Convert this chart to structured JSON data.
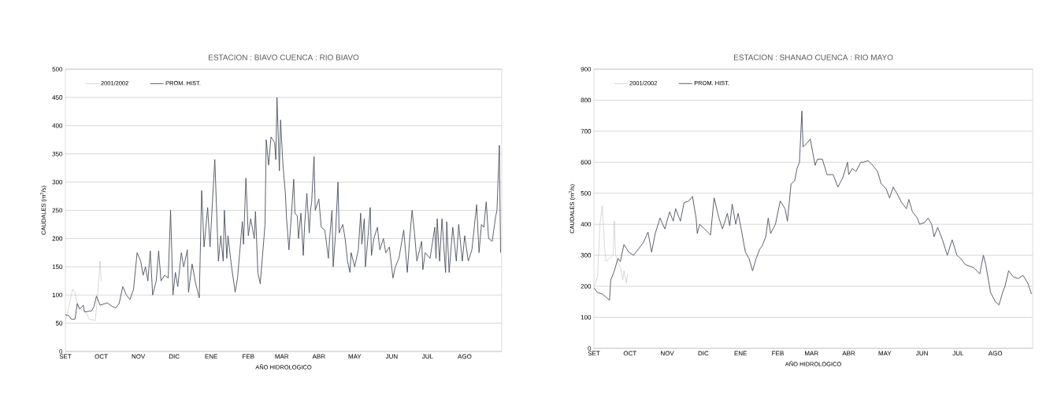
{
  "chart_data": [
    {
      "type": "line",
      "title": "ESTACION : BIAVO    CUENCA : RIO BIAVO",
      "xlabel": "AÑO HIDROLOGICO",
      "ylabel": "CAUDALES (m$^{3}$/s)",
      "xlim": [
        "2001-09-01",
        "2002-08-31"
      ],
      "xticks": [
        {
          "value": "2001-09-01",
          "label": "SET"
        },
        {
          "value": "2001-10-01",
          "label": "OCT"
        },
        {
          "value": "2001-11-01",
          "label": "NOV"
        },
        {
          "value": "2001-12-01",
          "label": "DIC"
        },
        {
          "value": "2002-01-01",
          "label": "ENE"
        },
        {
          "value": "2002-02-01",
          "label": "FEB"
        },
        {
          "value": "2002-03-01",
          "label": "MAR"
        },
        {
          "value": "2002-04-01",
          "label": "ABR"
        },
        {
          "value": "2002-05-01",
          "label": "MAY"
        },
        {
          "value": "2002-06-01",
          "label": "JUN"
        },
        {
          "value": "2002-07-01",
          "label": "JUL"
        },
        {
          "value": "2002-08-01",
          "label": "AGO"
        }
      ],
      "ylim": [
        0,
        500
      ],
      "yticks": [
        0,
        50,
        100,
        150,
        200,
        250,
        300,
        350,
        400,
        450,
        500
      ],
      "grid": "y",
      "legend": "top left",
      "marker": "none",
      "line_style": "solid",
      "series": [
        {
          "name": "2001/2002",
          "color": "#bdbdbd",
          "x": [
            "2001-09-01",
            "2001-09-04",
            "2001-09-07",
            "2001-09-09",
            "2001-09-11",
            "2001-09-14",
            "2001-09-18",
            "2001-09-21",
            "2001-09-26",
            "2001-09-28",
            "2001-09-30",
            "2001-10-01"
          ],
          "values": [
            55,
            80,
            110,
            105,
            80,
            75,
            70,
            57,
            55,
            100,
            160,
            125
          ]
        },
        {
          "name": "PROM. HIST.",
          "color": "#4a4f5e",
          "x": [
            "2001-09-01",
            "2001-09-04",
            "2001-09-06",
            "2001-09-09",
            "2001-09-11",
            "2001-09-13",
            "2001-09-16",
            "2001-09-17",
            "2001-09-23",
            "2001-09-25",
            "2001-09-27",
            "2001-09-30",
            "2001-10-06",
            "2001-10-10",
            "2001-10-13",
            "2001-10-16",
            "2001-10-19",
            "2001-10-22",
            "2001-10-25",
            "2001-10-28",
            "2001-10-31",
            "2001-11-03",
            "2001-11-05",
            "2001-11-07",
            "2001-11-09",
            "2001-11-11",
            "2001-11-13",
            "2001-11-16",
            "2001-11-18",
            "2001-11-20",
            "2001-11-23",
            "2001-11-26",
            "2001-11-28",
            "2001-11-30",
            "2001-12-02",
            "2001-12-04",
            "2001-12-07",
            "2001-12-09",
            "2001-12-12",
            "2001-12-13",
            "2001-12-16",
            "2001-12-19",
            "2001-12-22",
            "2001-12-24",
            "2001-12-26",
            "2001-12-29",
            "2001-12-31",
            "2002-01-02",
            "2002-01-04",
            "2002-01-07",
            "2002-01-09",
            "2002-01-11",
            "2002-01-12",
            "2002-01-14",
            "2002-01-15",
            "2002-01-18",
            "2002-01-21",
            "2002-01-23",
            "2002-01-27",
            "2002-01-28",
            "2002-01-30",
            "2002-02-01",
            "2002-02-03",
            "2002-02-06",
            "2002-02-07",
            "2002-02-09",
            "2002-02-11",
            "2002-02-15",
            "2002-02-16",
            "2002-02-18",
            "2002-02-20",
            "2002-02-23",
            "2002-02-24",
            "2002-02-25",
            "2002-02-27",
            "2002-02-28",
            "2002-03-02",
            "2002-03-04",
            "2002-03-05",
            "2002-03-07",
            "2002-03-09",
            "2002-03-11",
            "2002-03-12",
            "2002-03-14",
            "2002-03-15",
            "2002-03-17",
            "2002-03-19",
            "2002-03-20",
            "2002-03-22",
            "2002-03-24",
            "2002-03-25",
            "2002-03-26",
            "2002-03-28",
            "2002-03-29",
            "2002-04-01",
            "2002-04-03",
            "2002-04-06",
            "2002-04-09",
            "2002-04-10",
            "2002-04-12",
            "2002-04-13",
            "2002-04-15",
            "2002-04-17",
            "2002-04-18",
            "2002-04-21",
            "2002-04-23",
            "2002-04-25",
            "2002-04-27",
            "2002-04-28",
            "2002-05-01",
            "2002-05-04",
            "2002-05-06",
            "2002-05-07",
            "2002-05-09",
            "2002-05-10",
            "2002-05-12",
            "2002-05-14",
            "2002-05-15",
            "2002-05-17",
            "2002-05-20",
            "2002-05-22",
            "2002-05-25",
            "2002-05-27",
            "2002-05-30",
            "2002-06-02",
            "2002-06-04",
            "2002-06-07",
            "2002-06-11",
            "2002-06-14",
            "2002-06-16",
            "2002-06-18",
            "2002-06-20",
            "2002-06-22",
            "2002-06-26",
            "2002-06-27",
            "2002-06-29",
            "2002-07-03",
            "2002-07-07",
            "2002-07-08",
            "2002-07-09",
            "2002-07-11",
            "2002-07-13",
            "2002-07-16",
            "2002-07-17",
            "2002-07-19",
            "2002-07-22",
            "2002-07-25",
            "2002-07-27",
            "2002-07-30",
            "2002-08-01",
            "2002-08-04",
            "2002-08-07",
            "2002-08-09",
            "2002-08-11",
            "2002-08-13",
            "2002-08-15",
            "2002-08-17",
            "2002-08-19",
            "2002-08-21",
            "2002-08-24",
            "2002-08-27",
            "2002-08-28",
            "2002-08-30",
            "2002-08-31"
          ],
          "values": [
            65,
            63,
            57,
            57,
            85,
            75,
            82,
            70,
            72,
            80,
            98,
            82,
            86,
            80,
            77,
            85,
            115,
            100,
            92,
            110,
            175,
            160,
            135,
            150,
            125,
            178,
            100,
            125,
            178,
            125,
            135,
            130,
            250,
            100,
            140,
            115,
            175,
            150,
            180,
            105,
            155,
            120,
            95,
            285,
            185,
            255,
            185,
            265,
            340,
            160,
            205,
            160,
            250,
            165,
            205,
            150,
            105,
            130,
            230,
            190,
            307,
            205,
            235,
            200,
            248,
            140,
            120,
            225,
            375,
            330,
            380,
            370,
            340,
            450,
            320,
            410,
            330,
            280,
            235,
            180,
            240,
            305,
            245,
            240,
            200,
            245,
            170,
            220,
            280,
            210,
            250,
            265,
            345,
            250,
            270,
            220,
            215,
            165,
            200,
            250,
            150,
            210,
            300,
            210,
            225,
            200,
            160,
            140,
            175,
            150,
            180,
            245,
            190,
            235,
            150,
            200,
            255,
            170,
            200,
            220,
            180,
            200,
            175,
            185,
            130,
            150,
            165,
            215,
            140,
            200,
            250,
            210,
            160,
            195,
            145,
            175,
            165,
            220,
            165,
            235,
            160,
            235,
            140,
            230,
            140,
            220,
            160,
            225,
            160,
            205,
            160,
            180,
            220,
            260,
            175,
            225,
            220,
            265,
            200,
            195,
            240,
            250,
            365,
            175
          ]
        }
      ]
    },
    {
      "type": "line",
      "title": "ESTACION : SHANAO    CUENCA : RIO MAYO",
      "xlabel": "AÑO HIDROLOGICO",
      "ylabel": "CAUDALES (m$^{3}$/s)",
      "xlim": [
        "2001-09-01",
        "2002-08-31"
      ],
      "xticks": [
        {
          "value": "2001-09-01",
          "label": "SET"
        },
        {
          "value": "2001-10-01",
          "label": "OCT"
        },
        {
          "value": "2001-11-01",
          "label": "NOV"
        },
        {
          "value": "2001-12-01",
          "label": "DIC"
        },
        {
          "value": "2002-01-01",
          "label": "ENE"
        },
        {
          "value": "2002-02-01",
          "label": "FEB"
        },
        {
          "value": "2002-03-01",
          "label": "MAR"
        },
        {
          "value": "2002-04-01",
          "label": "ABR"
        },
        {
          "value": "2002-05-01",
          "label": "MAY"
        },
        {
          "value": "2002-06-01",
          "label": "JUN"
        },
        {
          "value": "2002-07-01",
          "label": "JUL"
        },
        {
          "value": "2002-08-01",
          "label": "AGO"
        }
      ],
      "ylim": [
        0,
        900
      ],
      "yticks": [
        0,
        100,
        200,
        300,
        400,
        500,
        600,
        700,
        800,
        900
      ],
      "grid": "y",
      "legend": "top left",
      "marker": "none",
      "line_style": "solid",
      "series": [
        {
          "name": "2001/2002",
          "color": "#bdbdbd",
          "x": [
            "2001-09-01",
            "2001-09-04",
            "2001-09-06",
            "2001-09-08",
            "2001-09-10",
            "2001-09-11",
            "2001-09-14",
            "2001-09-17",
            "2001-09-18",
            "2001-09-19",
            "2001-09-21",
            "2001-09-23",
            "2001-09-25",
            "2001-09-26",
            "2001-09-28",
            "2001-09-29"
          ],
          "values": [
            200,
            230,
            400,
            460,
            320,
            280,
            290,
            300,
            410,
            300,
            280,
            260,
            220,
            250,
            210,
            240
          ]
        },
        {
          "name": "PROM. HIST.",
          "color": "#4a4f5e",
          "x": [
            "2001-09-01",
            "2001-09-04",
            "2001-09-08",
            "2001-09-11",
            "2001-09-14",
            "2001-09-15",
            "2001-09-18",
            "2001-09-21",
            "2001-09-23",
            "2001-09-26",
            "2001-09-30",
            "2001-10-04",
            "2001-10-08",
            "2001-10-12",
            "2001-10-16",
            "2001-10-19",
            "2001-10-22",
            "2001-10-26",
            "2001-10-30",
            "2001-11-03",
            "2001-11-06",
            "2001-11-08",
            "2001-11-12",
            "2001-11-15",
            "2001-11-19",
            "2001-11-22",
            "2001-11-25",
            "2001-11-26",
            "2001-11-28",
            "2001-12-02",
            "2001-12-06",
            "2001-12-07",
            "2001-12-10",
            "2001-12-14",
            "2001-12-17",
            "2001-12-21",
            "2001-12-23",
            "2001-12-25",
            "2001-12-28",
            "2001-12-30",
            "2002-01-02",
            "2002-01-05",
            "2002-01-08",
            "2002-01-11",
            "2002-01-14",
            "2002-01-17",
            "2002-01-19",
            "2002-01-22",
            "2002-01-24",
            "2002-01-26",
            "2002-01-30",
            "2002-02-03",
            "2002-02-07",
            "2002-02-09",
            "2002-02-12",
            "2002-02-15",
            "2002-02-17",
            "2002-02-19",
            "2002-02-21",
            "2002-02-22",
            "2002-02-25",
            "2002-02-28",
            "2002-03-04",
            "2002-03-06",
            "2002-03-10",
            "2002-03-14",
            "2002-03-19",
            "2002-03-23",
            "2002-03-27",
            "2002-03-31",
            "2002-04-01",
            "2002-04-04",
            "2002-04-07",
            "2002-04-11",
            "2002-04-13",
            "2002-04-17",
            "2002-04-21",
            "2002-04-25",
            "2002-04-28",
            "2002-05-02",
            "2002-05-05",
            "2002-05-08",
            "2002-05-11",
            "2002-05-15",
            "2002-05-19",
            "2002-05-21",
            "2002-05-24",
            "2002-05-28",
            "2002-05-30",
            "2002-06-03",
            "2002-06-06",
            "2002-06-09",
            "2002-06-11",
            "2002-06-14",
            "2002-06-18",
            "2002-06-22",
            "2002-06-26",
            "2002-06-30",
            "2002-07-03",
            "2002-07-07",
            "2002-07-14",
            "2002-07-19",
            "2002-07-22",
            "2002-07-24",
            "2002-07-28",
            "2002-08-01",
            "2002-08-04",
            "2002-08-07",
            "2002-08-09",
            "2002-08-12",
            "2002-08-16",
            "2002-08-20",
            "2002-08-24",
            "2002-08-28",
            "2002-08-31"
          ],
          "values": [
            195,
            180,
            175,
            165,
            155,
            220,
            250,
            290,
            280,
            335,
            310,
            300,
            320,
            340,
            375,
            310,
            370,
            420,
            385,
            440,
            410,
            450,
            410,
            470,
            475,
            490,
            420,
            370,
            400,
            385,
            370,
            365,
            485,
            420,
            385,
            435,
            395,
            465,
            400,
            435,
            375,
            310,
            290,
            250,
            290,
            320,
            330,
            360,
            420,
            370,
            400,
            475,
            450,
            410,
            530,
            540,
            580,
            600,
            765,
            650,
            660,
            675,
            590,
            610,
            610,
            560,
            560,
            520,
            550,
            600,
            560,
            580,
            570,
            600,
            600,
            605,
            590,
            570,
            530,
            515,
            485,
            520,
            500,
            470,
            450,
            480,
            440,
            420,
            400,
            405,
            420,
            400,
            360,
            390,
            350,
            300,
            350,
            300,
            290,
            270,
            260,
            240,
            300,
            270,
            180,
            150,
            140,
            180,
            200,
            250,
            230,
            225,
            235,
            210,
            175
          ]
        }
      ]
    }
  ]
}
